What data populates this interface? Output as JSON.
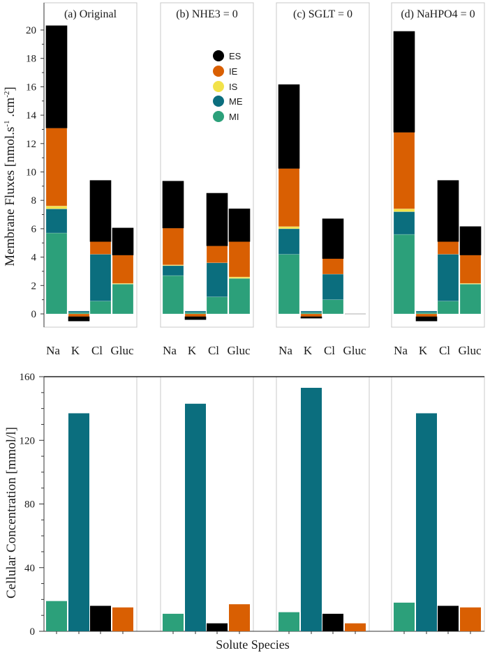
{
  "colors": {
    "ES": "#000000",
    "IE": "#d95f02",
    "IS": "#f2e24a",
    "ME": "#0b6e7e",
    "MI": "#2ca07a"
  },
  "chart_data": [
    {
      "type": "stacked-bar",
      "ylabel": "Membrane Fluxes [nmol.s",
      "ylabel_sup1": "-1",
      "ylabel_mid": " .cm",
      "ylabel_sup2": "-2",
      "ylabel_end": "]",
      "ylim": [
        -1,
        22
      ],
      "yticks": [
        0,
        2,
        4,
        6,
        8,
        10,
        12,
        14,
        16,
        18,
        20
      ],
      "categories": [
        "Na",
        "K",
        "Cl",
        "Gluc"
      ],
      "legend": [
        "ES",
        "IE",
        "IS",
        "ME",
        "MI"
      ],
      "panels": [
        {
          "title": "(a) Original",
          "values": {
            "Na": {
              "MI": 5.7,
              "ME": 1.7,
              "IS": 0.2,
              "IE": 5.5,
              "ES": 7.2
            },
            "K": {
              "MI": 0.1,
              "ME": 0.1,
              "IS": 0.0,
              "IE": -0.2,
              "ES": -0.3
            },
            "Cl": {
              "MI": 0.9,
              "ME": 3.3,
              "IS": 0.0,
              "IE": 0.9,
              "ES": 4.3
            },
            "Gluc": {
              "MI": 2.1,
              "ME": 0.0,
              "IS": 0.05,
              "IE": 2.0,
              "ES": 1.9
            }
          }
        },
        {
          "title": "(b) NHE3 = 0",
          "values": {
            "Na": {
              "MI": 2.7,
              "ME": 0.7,
              "IS": 0.05,
              "IE": 2.6,
              "ES": 3.3
            },
            "K": {
              "MI": 0.1,
              "ME": 0.1,
              "IS": 0.0,
              "IE": -0.2,
              "ES": -0.2
            },
            "Cl": {
              "MI": 1.2,
              "ME": 2.4,
              "IS": 0.0,
              "IE": 1.2,
              "ES": 3.7
            },
            "Gluc": {
              "MI": 2.5,
              "ME": 0.0,
              "IS": 0.1,
              "IE": 2.5,
              "ES": 2.3
            }
          }
        },
        {
          "title": "(c) SGLT = 0",
          "values": {
            "Na": {
              "MI": 4.2,
              "ME": 1.8,
              "IS": 0.15,
              "IE": 4.1,
              "ES": 5.9
            },
            "K": {
              "MI": 0.1,
              "ME": 0.1,
              "IS": 0.0,
              "IE": -0.2,
              "ES": -0.1
            },
            "Cl": {
              "MI": 1.0,
              "ME": 1.8,
              "IS": 0.0,
              "IE": 1.1,
              "ES": 2.8
            },
            "Gluc": {
              "MI": 0.0,
              "ME": 0.0,
              "IS": 0.0,
              "IE": 0.0,
              "ES": 0.0
            }
          }
        },
        {
          "title": "(d) NaHPO4 = 0",
          "values": {
            "Na": {
              "MI": 5.6,
              "ME": 1.6,
              "IS": 0.2,
              "IE": 5.4,
              "ES": 7.1
            },
            "K": {
              "MI": 0.1,
              "ME": 0.1,
              "IS": 0.0,
              "IE": -0.2,
              "ES": -0.3
            },
            "Cl": {
              "MI": 0.9,
              "ME": 3.3,
              "IS": 0.0,
              "IE": 0.9,
              "ES": 4.3
            },
            "Gluc": {
              "MI": 2.1,
              "ME": 0.0,
              "IS": 0.05,
              "IE": 2.0,
              "ES": 2.0
            }
          }
        }
      ]
    },
    {
      "type": "bar",
      "ylabel": "Cellular Concentration [mmol/l]",
      "xlabel": "Solute Species",
      "ylim": [
        0,
        160
      ],
      "yticks": [
        0,
        40,
        80,
        120,
        160
      ],
      "categories": [
        "Na",
        "K",
        "Cl",
        "Gluc"
      ],
      "category_colors": [
        "#2ca07a",
        "#0b6e7e",
        "#000000",
        "#d95f02"
      ],
      "panels": [
        {
          "values": [
            19,
            137,
            16,
            15
          ]
        },
        {
          "values": [
            11,
            143,
            5,
            17
          ]
        },
        {
          "values": [
            12,
            153,
            11,
            5
          ]
        },
        {
          "values": [
            18,
            137,
            16,
            15
          ]
        }
      ]
    }
  ]
}
